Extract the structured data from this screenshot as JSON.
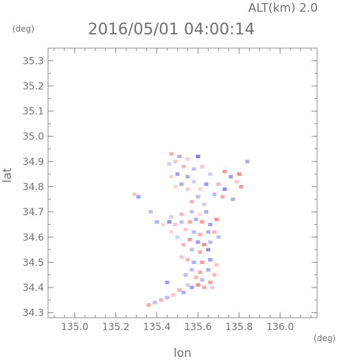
{
  "header": {
    "timestamp": "2016/05/01 04:00:14",
    "altitude": "ALT(km) 2.0"
  },
  "chart_data": {
    "type": "scatter",
    "xlabel": "lon",
    "ylabel": "lat",
    "x_unit": "(deg)",
    "y_unit": "(deg)",
    "xlim": [
      134.87,
      136.18
    ],
    "ylim": [
      34.28,
      35.35
    ],
    "xticks": [
      135.0,
      135.2,
      135.4,
      135.6,
      135.8,
      136.0
    ],
    "xtick_labels": [
      "135.0",
      "135.2",
      "135.4",
      "135.6",
      "135.8",
      "136.0"
    ],
    "yticks": [
      34.3,
      34.4,
      34.5,
      34.6,
      34.7,
      34.8,
      34.9,
      35.0,
      35.1,
      35.2,
      35.3
    ],
    "ytick_labels": [
      "34.3",
      "34.4",
      "34.5",
      "34.6",
      "34.7",
      "34.8",
      "34.9",
      "35.0",
      "35.1",
      "35.2",
      "35.3"
    ],
    "grid": false,
    "colors": {
      "positive": "#ff6b6b",
      "negative": "#5a5af0",
      "axis": "#888888"
    },
    "points": [
      [
        135.47,
        34.93,
        0.6
      ],
      [
        135.51,
        34.92,
        -0.5
      ],
      [
        135.49,
        34.9,
        0.4
      ],
      [
        135.55,
        34.91,
        0.3
      ],
      [
        135.6,
        34.92,
        -0.8
      ],
      [
        135.53,
        34.88,
        0.5
      ],
      [
        135.46,
        34.89,
        -0.3
      ],
      [
        135.58,
        34.87,
        -0.4
      ],
      [
        135.5,
        34.85,
        -0.6
      ],
      [
        135.47,
        34.84,
        0.3
      ],
      [
        135.55,
        34.84,
        -0.5
      ],
      [
        135.62,
        34.88,
        0.4
      ],
      [
        135.66,
        34.85,
        -0.3
      ],
      [
        135.73,
        34.86,
        0.7
      ],
      [
        135.76,
        34.84,
        -0.6
      ],
      [
        135.8,
        34.85,
        0.8
      ],
      [
        135.84,
        34.9,
        -0.5
      ],
      [
        135.79,
        34.82,
        0.4
      ],
      [
        135.73,
        34.79,
        -0.7
      ],
      [
        135.7,
        34.81,
        0.5
      ],
      [
        135.68,
        34.77,
        -0.4
      ],
      [
        135.72,
        34.76,
        0.6
      ],
      [
        135.77,
        34.75,
        -0.5
      ],
      [
        135.81,
        34.8,
        0.7
      ],
      [
        135.64,
        34.81,
        -0.6
      ],
      [
        135.61,
        34.79,
        0.3
      ],
      [
        135.58,
        34.82,
        -0.3
      ],
      [
        135.55,
        34.79,
        0.4
      ],
      [
        135.52,
        34.81,
        -0.5
      ],
      [
        135.49,
        34.8,
        0.3
      ],
      [
        135.6,
        34.76,
        -0.4
      ],
      [
        135.57,
        34.74,
        0.5
      ],
      [
        135.63,
        34.73,
        -0.3
      ],
      [
        135.29,
        34.77,
        0.4
      ],
      [
        135.31,
        34.76,
        -0.6
      ],
      [
        135.37,
        34.7,
        -0.4
      ],
      [
        135.4,
        34.66,
        -0.5
      ],
      [
        135.43,
        34.65,
        0.3
      ],
      [
        135.46,
        34.66,
        -0.7
      ],
      [
        135.49,
        34.65,
        0.4
      ],
      [
        135.52,
        34.66,
        -0.4
      ],
      [
        135.56,
        34.66,
        0.6
      ],
      [
        135.59,
        34.67,
        -0.5
      ],
      [
        135.62,
        34.66,
        0.7
      ],
      [
        135.66,
        34.65,
        -0.6
      ],
      [
        135.69,
        34.67,
        0.8
      ],
      [
        135.47,
        34.68,
        -0.3
      ],
      [
        135.52,
        34.69,
        0.5
      ],
      [
        135.57,
        34.7,
        -0.4
      ],
      [
        135.61,
        34.69,
        0.3
      ],
      [
        135.64,
        34.7,
        -0.5
      ],
      [
        135.54,
        34.63,
        0.4
      ],
      [
        135.58,
        34.62,
        -0.4
      ],
      [
        135.61,
        34.61,
        0.6
      ],
      [
        135.65,
        34.62,
        -0.5
      ],
      [
        135.56,
        34.59,
        0.7
      ],
      [
        135.6,
        34.58,
        -0.6
      ],
      [
        135.63,
        34.57,
        0.8
      ],
      [
        135.66,
        34.58,
        -0.4
      ],
      [
        135.53,
        34.57,
        0.5
      ],
      [
        135.57,
        34.55,
        -0.4
      ],
      [
        135.61,
        34.54,
        0.6
      ],
      [
        135.65,
        34.55,
        -0.7
      ],
      [
        135.55,
        34.51,
        0.5
      ],
      [
        135.58,
        34.5,
        -0.5
      ],
      [
        135.62,
        34.5,
        0.7
      ],
      [
        135.66,
        34.51,
        -0.6
      ],
      [
        135.69,
        34.49,
        0.4
      ],
      [
        135.57,
        34.47,
        -0.4
      ],
      [
        135.61,
        34.46,
        0.6
      ],
      [
        135.65,
        34.47,
        -0.5
      ],
      [
        135.68,
        34.45,
        0.5
      ],
      [
        135.62,
        34.43,
        -0.4
      ],
      [
        135.66,
        34.42,
        0.7
      ],
      [
        135.6,
        34.41,
        0.8
      ],
      [
        135.57,
        34.4,
        -0.6
      ],
      [
        135.63,
        34.4,
        0.6
      ],
      [
        135.53,
        34.38,
        -0.5
      ],
      [
        135.48,
        34.37,
        0.4
      ],
      [
        135.45,
        34.36,
        -0.4
      ],
      [
        135.42,
        34.35,
        0.5
      ],
      [
        135.39,
        34.34,
        -0.4
      ],
      [
        135.36,
        34.33,
        0.6
      ],
      [
        135.51,
        34.39,
        0.5
      ],
      [
        135.55,
        34.41,
        -0.3
      ],
      [
        135.45,
        34.42,
        -0.6
      ],
      [
        135.67,
        34.4,
        0.4
      ],
      [
        135.59,
        34.44,
        0.5
      ],
      [
        135.54,
        34.45,
        -0.4
      ],
      [
        135.52,
        34.52,
        0.4
      ],
      [
        135.5,
        34.6,
        -0.3
      ],
      [
        135.47,
        34.62,
        0.3
      ],
      [
        135.68,
        34.62,
        0.5
      ],
      [
        135.7,
        34.6,
        -0.4
      ]
    ]
  }
}
